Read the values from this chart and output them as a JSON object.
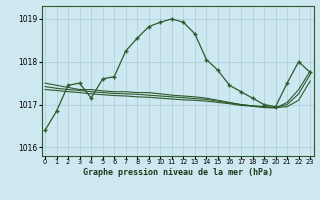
{
  "title": "Graphe pression niveau de la mer (hPa)",
  "bg_color": "#cde8f0",
  "grid_color": "#aaccd8",
  "line_color": "#2d5a2d",
  "border_color": "#2d5a2d",
  "x_labels": [
    "0",
    "1",
    "2",
    "3",
    "4",
    "5",
    "6",
    "7",
    "8",
    "9",
    "10",
    "11",
    "12",
    "13",
    "14",
    "15",
    "16",
    "17",
    "18",
    "19",
    "20",
    "21",
    "22",
    "23"
  ],
  "ylim": [
    1015.8,
    1019.3
  ],
  "yticks": [
    1016,
    1017,
    1018,
    1019
  ],
  "main_series": [
    1016.4,
    1016.85,
    1017.45,
    1017.5,
    1017.15,
    1017.6,
    1017.65,
    1018.25,
    1018.55,
    1018.82,
    1018.92,
    1019.0,
    1018.92,
    1018.65,
    1018.05,
    1017.8,
    1017.45,
    1017.3,
    1017.15,
    1017.0,
    1016.95,
    1017.5,
    1018.0,
    1017.75
  ],
  "flat_series1": [
    1017.5,
    1017.45,
    1017.4,
    1017.35,
    1017.35,
    1017.32,
    1017.3,
    1017.3,
    1017.28,
    1017.28,
    1017.25,
    1017.22,
    1017.2,
    1017.18,
    1017.15,
    1017.1,
    1017.05,
    1017.0,
    1016.97,
    1016.95,
    1016.93,
    1016.95,
    1017.1,
    1017.55
  ],
  "flat_series2": [
    1017.42,
    1017.38,
    1017.35,
    1017.33,
    1017.3,
    1017.28,
    1017.26,
    1017.25,
    1017.24,
    1017.22,
    1017.2,
    1017.18,
    1017.16,
    1017.14,
    1017.12,
    1017.08,
    1017.04,
    1017.0,
    1016.97,
    1016.95,
    1016.93,
    1017.0,
    1017.25,
    1017.7
  ],
  "flat_series3": [
    1017.35,
    1017.33,
    1017.3,
    1017.28,
    1017.25,
    1017.23,
    1017.21,
    1017.2,
    1017.18,
    1017.17,
    1017.15,
    1017.13,
    1017.11,
    1017.1,
    1017.08,
    1017.05,
    1017.02,
    1016.98,
    1016.96,
    1016.93,
    1016.92,
    1017.05,
    1017.35,
    1017.78
  ]
}
